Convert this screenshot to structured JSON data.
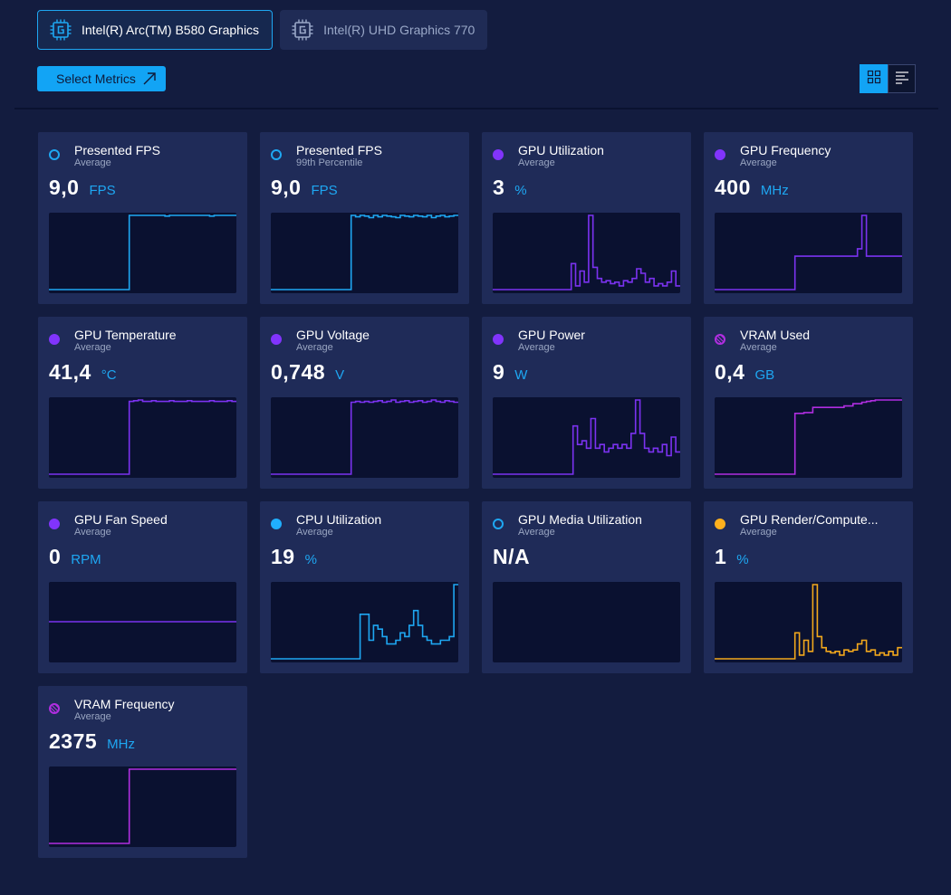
{
  "colors": {
    "cyan": "#1ea7f2",
    "purple": "#7b32f0",
    "magenta": "#b02ee0",
    "orange": "#f2a81c"
  },
  "gpu_tabs": [
    {
      "label": "Intel(R) Arc(TM) B580 Graphics",
      "icon": "gpu-chip-icon",
      "active": true
    },
    {
      "label": "Intel(R) UHD Graphics 770",
      "icon": "gpu-chip-icon",
      "active": false
    }
  ],
  "toolbar": {
    "select_metrics_label": "Select Metrics",
    "select_metrics_icon": "external-arrow-icon",
    "grid_view_icon": "grid-view-icon",
    "list_view_icon": "list-view-icon"
  },
  "metrics": [
    {
      "name": "Presented FPS",
      "stat": "Average",
      "value": "9,0",
      "unit": "FPS",
      "dot": "ring",
      "color": "#1ea7f2",
      "series": [
        0,
        0,
        0,
        0,
        0,
        0,
        0,
        0,
        0,
        0,
        0,
        0,
        0,
        0,
        0,
        0,
        0,
        0,
        1,
        1,
        1,
        1,
        1,
        1,
        1,
        1,
        0.99,
        1,
        1,
        1,
        1,
        1,
        1,
        1,
        1,
        1,
        0.99,
        1,
        1,
        1,
        1,
        1
      ]
    },
    {
      "name": "Presented FPS",
      "stat": "99th Percentile",
      "value": "9,0",
      "unit": "FPS",
      "dot": "ring",
      "color": "#1ea7f2",
      "series": [
        0,
        0,
        0,
        0,
        0,
        0,
        0,
        0,
        0,
        0,
        0,
        0,
        0,
        0,
        0,
        0,
        0,
        0,
        1,
        0.98,
        1,
        0.99,
        0.97,
        1,
        0.98,
        1,
        0.99,
        0.98,
        0.97,
        1,
        0.99,
        0.98,
        1,
        0.99,
        0.98,
        1,
        0.97,
        0.99,
        1,
        0.98,
        0.99,
        1
      ]
    },
    {
      "name": "GPU Utilization",
      "stat": "Average",
      "value": "3",
      "unit": "%",
      "dot": "solid",
      "color": "#7b32f0",
      "series": [
        0,
        0,
        0,
        0,
        0,
        0,
        0,
        0,
        0,
        0,
        0,
        0,
        0,
        0,
        0,
        0,
        0,
        0,
        0.35,
        0.05,
        0.25,
        0.1,
        1,
        0.3,
        0.15,
        0.1,
        0.12,
        0.08,
        0.1,
        0.05,
        0.12,
        0.1,
        0.15,
        0.28,
        0.22,
        0.1,
        0.15,
        0.05,
        0.08,
        0.05,
        0.1,
        0.25,
        0.05
      ]
    },
    {
      "name": "GPU Frequency",
      "stat": "Average",
      "value": "400",
      "unit": "MHz",
      "dot": "solid",
      "color": "#7b32f0",
      "series": [
        0,
        0,
        0,
        0,
        0,
        0,
        0,
        0,
        0,
        0,
        0,
        0,
        0,
        0,
        0,
        0,
        0,
        0,
        0.45,
        0.45,
        0.45,
        0.45,
        0.45,
        0.45,
        0.45,
        0.45,
        0.45,
        0.45,
        0.45,
        0.45,
        0.45,
        0.45,
        0.55,
        1,
        0.45,
        0.45,
        0.45,
        0.45,
        0.45,
        0.45,
        0.45,
        0.45
      ]
    },
    {
      "name": "GPU Temperature",
      "stat": "Average",
      "value": "41,4",
      "unit": "°C",
      "dot": "solid",
      "color": "#7b32f0",
      "series": [
        0,
        0,
        0,
        0,
        0,
        0,
        0,
        0,
        0,
        0,
        0,
        0,
        0,
        0,
        0,
        0,
        0,
        0,
        0.98,
        0.99,
        1,
        0.98,
        0.98,
        0.99,
        0.98,
        0.98,
        0.98,
        0.99,
        0.98,
        0.98,
        0.98,
        0.99,
        0.98,
        0.98,
        0.98,
        0.98,
        0.99,
        0.98,
        0.98,
        0.98,
        0.99,
        0.98
      ]
    },
    {
      "name": "GPU Voltage",
      "stat": "Average",
      "value": "0,748",
      "unit": "V",
      "dot": "solid",
      "color": "#7b32f0",
      "series": [
        0,
        0,
        0,
        0,
        0,
        0,
        0,
        0,
        0,
        0,
        0,
        0,
        0,
        0,
        0,
        0,
        0,
        0,
        0.97,
        0.98,
        0.97,
        0.98,
        0.97,
        0.98,
        0.99,
        0.97,
        0.98,
        1,
        0.97,
        0.98,
        0.99,
        0.97,
        0.98,
        0.99,
        0.97,
        0.98,
        1,
        0.98,
        0.97,
        0.99,
        0.98,
        0.97
      ]
    },
    {
      "name": "GPU Power",
      "stat": "Average",
      "value": "9",
      "unit": "W",
      "dot": "solid",
      "color": "#7b32f0",
      "series": [
        0,
        0,
        0,
        0,
        0,
        0,
        0,
        0,
        0,
        0,
        0,
        0,
        0,
        0,
        0,
        0,
        0,
        0,
        0.65,
        0.4,
        0.45,
        0.35,
        0.75,
        0.35,
        0.4,
        0.3,
        0.35,
        0.4,
        0.35,
        0.4,
        0.35,
        0.55,
        1,
        0.55,
        0.35,
        0.3,
        0.35,
        0.3,
        0.4,
        0.25,
        0.5,
        0.3
      ]
    },
    {
      "name": "VRAM Used",
      "stat": "Average",
      "value": "0,4",
      "unit": "GB",
      "dot": "hatched",
      "color": "#b02ee0",
      "series": [
        0,
        0,
        0,
        0,
        0,
        0,
        0,
        0,
        0,
        0,
        0,
        0,
        0,
        0,
        0,
        0,
        0,
        0,
        0.82,
        0.82,
        0.83,
        0.83,
        0.9,
        0.9,
        0.9,
        0.9,
        0.9,
        0.9,
        0.9,
        0.92,
        0.92,
        0.95,
        0.95,
        0.97,
        0.98,
        0.99,
        1,
        1,
        1,
        1,
        1,
        1
      ]
    },
    {
      "name": "GPU Fan Speed",
      "stat": "Average",
      "value": "0",
      "unit": "RPM",
      "dot": "solid",
      "color": "#7b32f0",
      "series": [
        0.5,
        0.5,
        0.5,
        0.5,
        0.5,
        0.5,
        0.5,
        0.5,
        0.5,
        0.5,
        0.5,
        0.5,
        0.5,
        0.5,
        0.5,
        0.5,
        0.5,
        0.5,
        0.5,
        0.5,
        0.5,
        0.5,
        0.5,
        0.5,
        0.5,
        0.5,
        0.5,
        0.5,
        0.5,
        0.5,
        0.5,
        0.5,
        0.5,
        0.5,
        0.5,
        0.5,
        0.5,
        0.5,
        0.5,
        0.5,
        0.5,
        0.5
      ]
    },
    {
      "name": "CPU Utilization",
      "stat": "Average",
      "value": "19",
      "unit": "%",
      "dot": "solid",
      "color": "#1ea7f2",
      "series": [
        0,
        0,
        0,
        0,
        0,
        0,
        0,
        0,
        0,
        0,
        0,
        0,
        0,
        0,
        0,
        0,
        0,
        0,
        0,
        0,
        0.6,
        0.6,
        0.25,
        0.45,
        0.4,
        0.3,
        0.2,
        0.2,
        0.25,
        0.35,
        0.3,
        0.45,
        0.65,
        0.45,
        0.3,
        0.25,
        0.2,
        0.2,
        0.25,
        0.25,
        0.3,
        1
      ]
    },
    {
      "name": "GPU Media Utilization",
      "stat": "Average",
      "value": "N/A",
      "unit": "",
      "dot": "ring",
      "color": "#1ea7f2",
      "series": []
    },
    {
      "name": "GPU Render/Compute...",
      "stat": "Average",
      "value": "1",
      "unit": "%",
      "dot": "solid",
      "color": "#f2a81c",
      "series": [
        0,
        0,
        0,
        0,
        0,
        0,
        0,
        0,
        0,
        0,
        0,
        0,
        0,
        0,
        0,
        0,
        0,
        0,
        0.35,
        0.05,
        0.25,
        0.1,
        1,
        0.3,
        0.15,
        0.1,
        0.08,
        0.1,
        0.05,
        0.12,
        0.1,
        0.12,
        0.2,
        0.25,
        0.1,
        0.12,
        0.05,
        0.08,
        0.05,
        0.1,
        0.05,
        0.15
      ]
    },
    {
      "name": "VRAM Frequency",
      "stat": "Average",
      "value": "2375",
      "unit": "MHz",
      "dot": "hatched",
      "color": "#b02ee0",
      "series": [
        0,
        0,
        0,
        0,
        0,
        0,
        0,
        0,
        0,
        0,
        0,
        0,
        0,
        0,
        0,
        0,
        0,
        0,
        1,
        1,
        1,
        1,
        1,
        1,
        1,
        1,
        1,
        1,
        1,
        1,
        1,
        1,
        1,
        1,
        1,
        1,
        1,
        1,
        1,
        1,
        1,
        1
      ]
    }
  ]
}
